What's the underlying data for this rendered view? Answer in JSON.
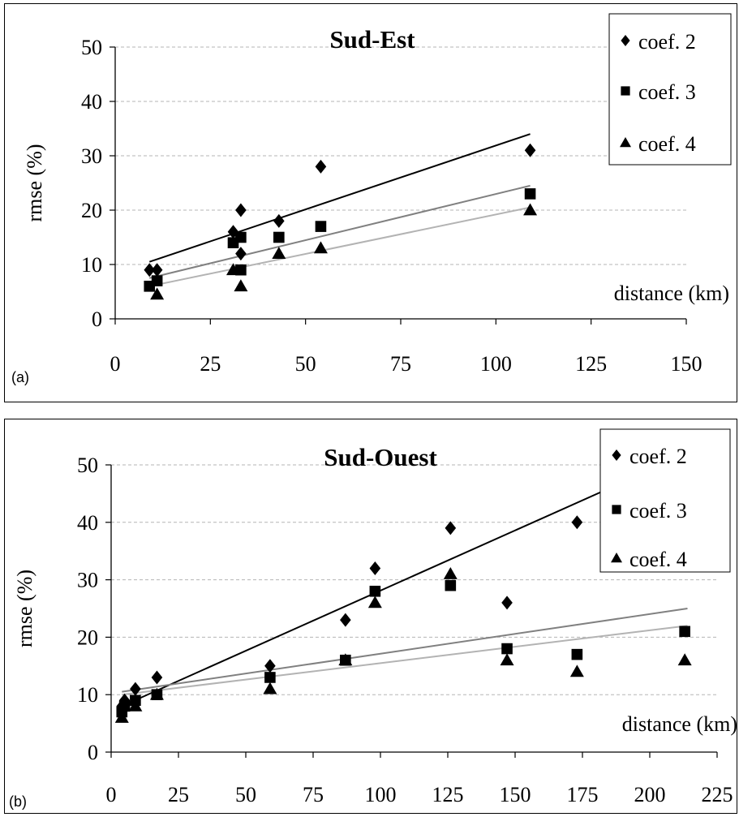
{
  "chart_data": [
    {
      "type": "scatter",
      "panel_label": "(a)",
      "title": "Sud-Est",
      "ylabel": "rmse (%)",
      "xlabel": "distance (km)",
      "xlim": [
        0,
        150
      ],
      "ylim": [
        0,
        50
      ],
      "xticks": [
        0,
        25,
        50,
        75,
        100,
        125,
        150
      ],
      "yticks": [
        0,
        10,
        20,
        30,
        40,
        50
      ],
      "grid": "horizontal dashed",
      "legend_position": "top-right",
      "series": [
        {
          "name": "coef. 2",
          "marker": "diamond",
          "color": "#000000",
          "points": [
            [
              9,
              9
            ],
            [
              11,
              9
            ],
            [
              31,
              16
            ],
            [
              33,
              20
            ],
            [
              33,
              12
            ],
            [
              43,
              18
            ],
            [
              54,
              28
            ],
            [
              109,
              31
            ]
          ],
          "trendline": {
            "x": [
              9,
              109
            ],
            "y": [
              10.5,
              34
            ],
            "color": "#000000"
          }
        },
        {
          "name": "coef. 3",
          "marker": "square",
          "color": "#000000",
          "points": [
            [
              9,
              6
            ],
            [
              11,
              7
            ],
            [
              31,
              14
            ],
            [
              33,
              15
            ],
            [
              33,
              9
            ],
            [
              43,
              15
            ],
            [
              54,
              17
            ],
            [
              109,
              23
            ]
          ],
          "trendline": {
            "x": [
              9,
              109
            ],
            "y": [
              7.5,
              24.5
            ],
            "color": "#808080"
          }
        },
        {
          "name": "coef. 4",
          "marker": "triangle",
          "color": "#000000",
          "points": [
            [
              11,
              4.5
            ],
            [
              31,
              9
            ],
            [
              33,
              6
            ],
            [
              43,
              12
            ],
            [
              54,
              13
            ],
            [
              109,
              20
            ]
          ],
          "trendline": {
            "x": [
              9,
              109
            ],
            "y": [
              6,
              20.5
            ],
            "color": "#b3b3b3"
          }
        }
      ]
    },
    {
      "type": "scatter",
      "panel_label": "(b)",
      "title": "Sud-Ouest",
      "ylabel": "rmse (%)",
      "xlabel": "distance (km)",
      "xlim": [
        0,
        225
      ],
      "ylim": [
        0,
        50
      ],
      "xticks": [
        0,
        25,
        50,
        75,
        100,
        125,
        150,
        175,
        200,
        225
      ],
      "yticks": [
        0,
        10,
        20,
        30,
        40,
        50
      ],
      "grid": "horizontal dashed",
      "legend_position": "top-right",
      "series": [
        {
          "name": "coef. 2",
          "marker": "diamond",
          "color": "#000000",
          "points": [
            [
              4,
              8
            ],
            [
              5,
              9
            ],
            [
              9,
              11
            ],
            [
              17,
              13
            ],
            [
              59,
              15
            ],
            [
              87,
              23
            ],
            [
              98,
              32
            ],
            [
              126,
              39
            ],
            [
              147,
              26
            ],
            [
              173,
              40
            ]
          ],
          "trendline": {
            "x": [
              4,
              214
            ],
            "y": [
              8,
              52
            ],
            "color": "#000000"
          }
        },
        {
          "name": "coef. 3",
          "marker": "square",
          "color": "#000000",
          "points": [
            [
              4,
              7
            ],
            [
              5,
              8
            ],
            [
              9,
              9
            ],
            [
              17,
              10
            ],
            [
              59,
              13
            ],
            [
              87,
              16
            ],
            [
              98,
              28
            ],
            [
              126,
              29
            ],
            [
              147,
              18
            ],
            [
              173,
              17
            ],
            [
              213,
              21
            ]
          ],
          "trendline": {
            "x": [
              4,
              214
            ],
            "y": [
              10.5,
              25
            ],
            "color": "#808080"
          }
        },
        {
          "name": "coef. 4",
          "marker": "triangle",
          "color": "#000000",
          "points": [
            [
              4,
              6
            ],
            [
              9,
              8
            ],
            [
              17,
              10
            ],
            [
              59,
              11
            ],
            [
              87,
              16
            ],
            [
              98,
              26
            ],
            [
              126,
              31
            ],
            [
              147,
              16
            ],
            [
              173,
              14
            ],
            [
              213,
              16
            ]
          ],
          "trendline": {
            "x": [
              4,
              214
            ],
            "y": [
              10,
              22
            ],
            "color": "#b3b3b3"
          }
        }
      ]
    }
  ]
}
